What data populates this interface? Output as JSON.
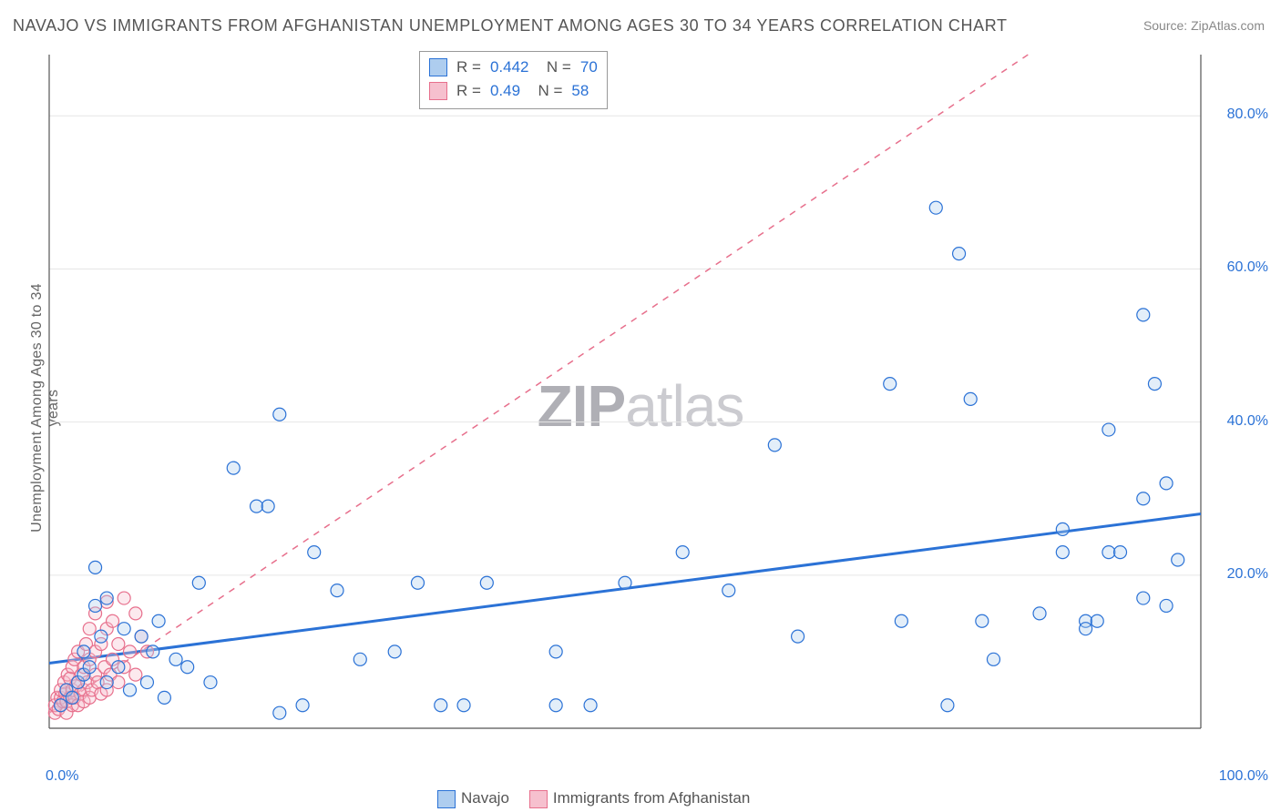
{
  "title": "NAVAJO VS IMMIGRANTS FROM AFGHANISTAN UNEMPLOYMENT AMONG AGES 30 TO 34 YEARS CORRELATION CHART",
  "source": "Source: ZipAtlas.com",
  "ylabel_text": "Unemployment Among Ages 30 to 34 years",
  "watermark": {
    "bold_part": "ZIP",
    "light_part": "atlas"
  },
  "chart": {
    "type": "scatter",
    "xlim": [
      0,
      100
    ],
    "ylim": [
      0,
      88
    ],
    "x_ticks": [
      {
        "v": 0,
        "label": "0.0%"
      },
      {
        "v": 100,
        "label": "100.0%"
      }
    ],
    "y_ticks": [
      {
        "v": 20,
        "label": "20.0%"
      },
      {
        "v": 40,
        "label": "40.0%"
      },
      {
        "v": 60,
        "label": "60.0%"
      },
      {
        "v": 80,
        "label": "80.0%"
      }
    ],
    "background_color": "#ffffff",
    "grid_color": "#e6e6e6",
    "axis_color": "#555555",
    "tick_label_color": "#2b72d6",
    "marker_radius": 7,
    "marker_stroke_width": 1.2,
    "marker_fill_opacity": 0.35,
    "regression_line_width": 3,
    "series": [
      {
        "name": "Navajo",
        "color_stroke": "#2b72d6",
        "color_fill": "#aecdef",
        "R": 0.442,
        "N": 70,
        "regression": {
          "x1": 0,
          "y1": 8.5,
          "x2": 100,
          "y2": 28,
          "dashed": false
        },
        "points": [
          [
            1,
            3
          ],
          [
            1.5,
            5
          ],
          [
            2,
            4
          ],
          [
            2.5,
            6
          ],
          [
            3,
            7
          ],
          [
            3,
            10
          ],
          [
            3.5,
            8
          ],
          [
            4,
            16
          ],
          [
            4,
            21
          ],
          [
            4.5,
            12
          ],
          [
            5,
            6
          ],
          [
            5,
            17
          ],
          [
            6,
            8
          ],
          [
            6.5,
            13
          ],
          [
            7,
            5
          ],
          [
            8,
            12
          ],
          [
            8.5,
            6
          ],
          [
            9,
            10
          ],
          [
            9.5,
            14
          ],
          [
            10,
            4
          ],
          [
            11,
            9
          ],
          [
            12,
            8
          ],
          [
            13,
            19
          ],
          [
            14,
            6
          ],
          [
            16,
            34
          ],
          [
            18,
            29
          ],
          [
            19,
            29
          ],
          [
            20,
            41
          ],
          [
            20,
            2
          ],
          [
            22,
            3
          ],
          [
            23,
            23
          ],
          [
            25,
            18
          ],
          [
            27,
            9
          ],
          [
            30,
            10
          ],
          [
            32,
            19
          ],
          [
            34,
            3
          ],
          [
            36,
            3
          ],
          [
            38,
            19
          ],
          [
            44,
            10
          ],
          [
            44,
            3
          ],
          [
            47,
            3
          ],
          [
            50,
            19
          ],
          [
            55,
            23
          ],
          [
            59,
            18
          ],
          [
            63,
            37
          ],
          [
            65,
            12
          ],
          [
            73,
            45
          ],
          [
            74,
            14
          ],
          [
            77,
            68
          ],
          [
            78,
            3
          ],
          [
            79,
            62
          ],
          [
            80,
            43
          ],
          [
            81,
            14
          ],
          [
            82,
            9
          ],
          [
            86,
            15
          ],
          [
            88,
            26
          ],
          [
            88,
            23
          ],
          [
            90,
            14
          ],
          [
            90,
            13
          ],
          [
            91,
            14
          ],
          [
            92,
            39
          ],
          [
            92,
            23
          ],
          [
            93,
            23
          ],
          [
            95,
            54
          ],
          [
            95,
            30
          ],
          [
            95,
            17
          ],
          [
            96,
            45
          ],
          [
            97,
            32
          ],
          [
            97,
            16
          ],
          [
            98,
            22
          ]
        ]
      },
      {
        "name": "Immigrants from Afghanistan",
        "color_stroke": "#e76f8c",
        "color_fill": "#f6c0ce",
        "R": 0.49,
        "N": 58,
        "regression": {
          "x1": 0,
          "y1": 2,
          "x2": 85,
          "y2": 88,
          "dashed": true
        },
        "points": [
          [
            0.5,
            2
          ],
          [
            0.5,
            3
          ],
          [
            0.7,
            4
          ],
          [
            0.8,
            2.5
          ],
          [
            1,
            3
          ],
          [
            1,
            4
          ],
          [
            1,
            5
          ],
          [
            1.2,
            3.5
          ],
          [
            1.3,
            6
          ],
          [
            1.4,
            4.5
          ],
          [
            1.5,
            2
          ],
          [
            1.5,
            3.5
          ],
          [
            1.5,
            5
          ],
          [
            1.6,
            7
          ],
          [
            1.8,
            4
          ],
          [
            1.8,
            6.5
          ],
          [
            2,
            3
          ],
          [
            2,
            5
          ],
          [
            2,
            8
          ],
          [
            2.2,
            4
          ],
          [
            2.2,
            9
          ],
          [
            2.3,
            5.5
          ],
          [
            2.5,
            3
          ],
          [
            2.5,
            6
          ],
          [
            2.5,
            10
          ],
          [
            2.7,
            4.5
          ],
          [
            2.8,
            7
          ],
          [
            3,
            3.5
          ],
          [
            3,
            5
          ],
          [
            3,
            8
          ],
          [
            3.2,
            11
          ],
          [
            3.3,
            6
          ],
          [
            3.5,
            4
          ],
          [
            3.5,
            9
          ],
          [
            3.5,
            13
          ],
          [
            3.7,
            5
          ],
          [
            4,
            7
          ],
          [
            4,
            10
          ],
          [
            4,
            15
          ],
          [
            4.2,
            6
          ],
          [
            4.5,
            4.5
          ],
          [
            4.5,
            11
          ],
          [
            4.8,
            8
          ],
          [
            5,
            5
          ],
          [
            5,
            13
          ],
          [
            5,
            16.5
          ],
          [
            5.3,
            7
          ],
          [
            5.5,
            9
          ],
          [
            5.5,
            14
          ],
          [
            6,
            6
          ],
          [
            6,
            11
          ],
          [
            6.5,
            8
          ],
          [
            6.5,
            17
          ],
          [
            7,
            10
          ],
          [
            7.5,
            7
          ],
          [
            7.5,
            15
          ],
          [
            8,
            12
          ],
          [
            8.5,
            10
          ]
        ]
      }
    ]
  },
  "legend_bottom": [
    {
      "label": "Navajo",
      "fill": "#aecdef",
      "stroke": "#2b72d6"
    },
    {
      "label": "Immigrants from Afghanistan",
      "fill": "#f6c0ce",
      "stroke": "#e76f8c"
    }
  ]
}
